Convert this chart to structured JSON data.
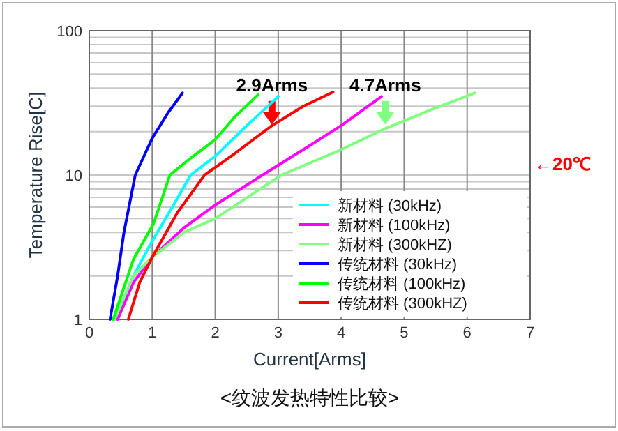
{
  "chart_data": {
    "type": "line",
    "title": "<纹波发热特性比较>",
    "xlabel": "Current[Arms]",
    "ylabel": "Temperature Rise[C]",
    "xlim": [
      0,
      7
    ],
    "xticks": [
      0,
      1,
      2,
      3,
      4,
      5,
      6,
      7
    ],
    "ylim": [
      1,
      100
    ],
    "yticks": [
      1,
      10,
      100
    ],
    "log": "y",
    "grid": true,
    "legend": "bottom right",
    "marker": "none",
    "line_style": "solid",
    "annotations": [
      {
        "text": "2.9Arms",
        "x": 2.9,
        "y": 20
      },
      {
        "text": "4.7Arms",
        "x": 4.7,
        "y": 20
      },
      "←20℃"
    ],
    "series": [
      {
        "name": "新材料 (30kHz)",
        "color": "#00ffff",
        "x": [
          0.42,
          0.7,
          1,
          1.3,
          1.61,
          2,
          2.5,
          3.0
        ],
        "values": [
          1,
          2,
          3.5,
          5.8,
          10,
          13.5,
          22,
          35
        ]
      },
      {
        "name": "新材料 (100kHz)",
        "color": "#ff00ff",
        "x": [
          0.45,
          0.7,
          1,
          1.5,
          2,
          2.75,
          3.5,
          4.0,
          4.64
        ],
        "values": [
          1,
          1.8,
          2.7,
          4.3,
          6.2,
          10,
          16,
          22,
          35
        ]
      },
      {
        "name": "新材料 (300kHZ)",
        "color": "#80ff80",
        "x": [
          0.4,
          0.7,
          1,
          1.5,
          2,
          3.05,
          4.0,
          4.7,
          5.4,
          6.12
        ],
        "values": [
          1,
          2,
          2.7,
          4,
          5,
          10,
          15,
          21,
          28,
          37
        ]
      },
      {
        "name": "传统材料 (30kHz)",
        "color": "#0000ff",
        "x": [
          0.33,
          0.45,
          0.55,
          0.73,
          1.0,
          1.25,
          1.48
        ],
        "values": [
          1,
          2,
          4,
          10,
          18,
          27,
          37
        ]
      },
      {
        "name": "传统材料 (100kHz)",
        "color": "#00ff00",
        "x": [
          0.38,
          0.7,
          1.02,
          1.28,
          1.6,
          2,
          2.3,
          2.68
        ],
        "values": [
          1,
          2.6,
          4.6,
          10,
          13,
          17.6,
          25,
          36
        ]
      },
      {
        "name": "传统材料 (300kHZ)",
        "color": "#ff0000",
        "x": [
          0.62,
          0.8,
          1,
          1.4,
          1.83,
          2.3,
          2.9,
          3.4,
          3.87
        ],
        "values": [
          1,
          1.8,
          2.7,
          5.5,
          10,
          14,
          22,
          30,
          37.6
        ]
      }
    ]
  }
}
